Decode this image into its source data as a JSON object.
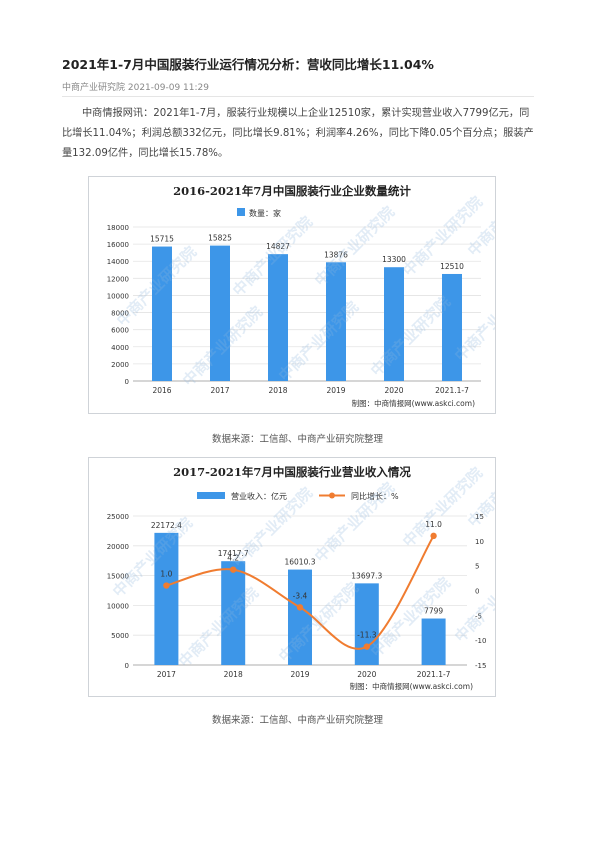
{
  "article": {
    "title": "2021年1-7月中国服装行业运行情况分析：营收同比增长11.04%",
    "meta": "中商产业研究院 2021-09-09 11:29",
    "paragraph": "中商情报网讯：2021年1-7月，服装行业规模以上企业12510家，累计实现营业收入7799亿元，同比增长11.04%；利润总额332亿元，同比增长9.81%；利润率4.26%，同比下降0.05个百分点；服装产量132.09亿件，同比增长15.78%。"
  },
  "captions": {
    "chart1": "数据来源：工信部、中商产业研究院整理",
    "chart2": "数据来源：工信部、中商产业研究院整理"
  },
  "watermark": {
    "text": "中商产业研究院"
  },
  "chart_data": [
    {
      "type": "bar",
      "title": "2016-2021年7月中国服装行业企业数量统计",
      "legend": "数量：家",
      "categories": [
        "2016",
        "2017",
        "2018",
        "2019",
        "2020",
        "2021.1-7"
      ],
      "values": [
        15715,
        15825,
        14827,
        13876,
        13300,
        12510
      ],
      "ylim": [
        0,
        18000
      ],
      "yticks": [
        0,
        2000,
        4000,
        6000,
        8000,
        10000,
        12000,
        14000,
        16000,
        18000
      ],
      "source_note": "制图：中商情报网(www.askci.com)",
      "color": "#3d96e8",
      "grid": true,
      "legend_position": "top-left"
    },
    {
      "type": "bar+line",
      "title": "2017-2021年7月中国服装行业营业收入情况",
      "categories": [
        "2017",
        "2018",
        "2019",
        "2020",
        "2021.1-7"
      ],
      "series": [
        {
          "name": "营业收入：亿元",
          "type": "bar",
          "axis": "left",
          "values": [
            22172.4,
            17417.7,
            16010.3,
            13697.3,
            7799
          ],
          "labels": [
            "22172.4",
            "17417.7",
            "16010.3",
            "13697.3",
            "7799"
          ],
          "color": "#3d96e8"
        },
        {
          "name": "同比增长：%",
          "type": "line",
          "axis": "right",
          "values": [
            1.0,
            4.2,
            -3.4,
            -11.3,
            11.0
          ],
          "labels": [
            "1.0",
            "4.2",
            "-3.4",
            "-11.3",
            "11.0"
          ],
          "color": "#f07c30"
        }
      ],
      "ylim_left": [
        0,
        25000
      ],
      "yticks_left": [
        0,
        5000,
        10000,
        15000,
        20000,
        25000
      ],
      "ylim_right": [
        -15,
        15
      ],
      "yticks_right": [
        -15,
        -10,
        -5,
        0,
        5,
        10,
        15
      ],
      "source_note": "制图：中商情报网(www.askci.com)",
      "grid": true,
      "legend_position": "top-center"
    }
  ]
}
